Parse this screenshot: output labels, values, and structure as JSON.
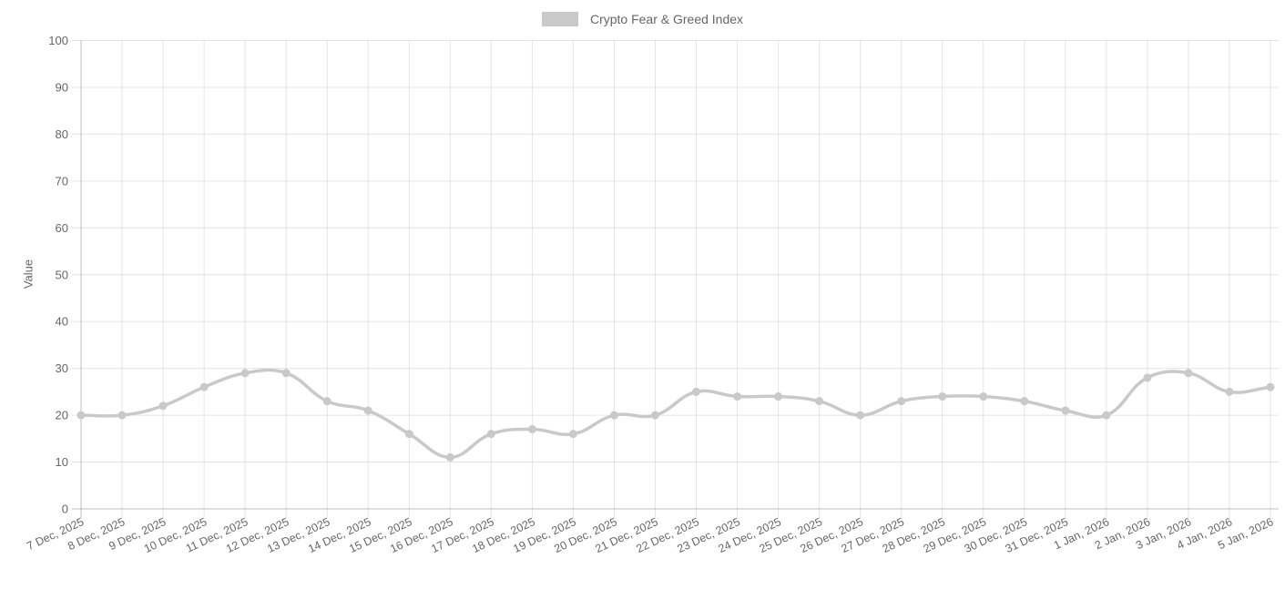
{
  "legend": {
    "label": "Crypto Fear & Greed Index",
    "swatch_color": "#c9c9c9"
  },
  "colors": {
    "background": "#ffffff",
    "series": "#c9c9c9",
    "grid": "rgba(0,0,0,0.1)",
    "axis_zero": "rgba(0,0,0,0.25)",
    "tick_label": "#666666"
  },
  "chart_data": {
    "type": "line",
    "title": "Crypto Fear & Greed Index",
    "xlabel": "",
    "ylabel": "Value",
    "ylim": [
      0,
      100
    ],
    "yticks": [
      0,
      10,
      20,
      30,
      40,
      50,
      60,
      70,
      80,
      90,
      100
    ],
    "grid": true,
    "legend_position": "top",
    "line_tension": 0.4,
    "marker_radius": 4.5,
    "line_width": 3.5,
    "categories": [
      "7 Dec, 2025",
      "8 Dec, 2025",
      "9 Dec, 2025",
      "10 Dec, 2025",
      "11 Dec, 2025",
      "12 Dec, 2025",
      "13 Dec, 2025",
      "14 Dec, 2025",
      "15 Dec, 2025",
      "16 Dec, 2025",
      "17 Dec, 2025",
      "18 Dec, 2025",
      "19 Dec, 2025",
      "20 Dec, 2025",
      "21 Dec, 2025",
      "22 Dec, 2025",
      "23 Dec, 2025",
      "24 Dec, 2025",
      "25 Dec, 2025",
      "26 Dec, 2025",
      "27 Dec, 2025",
      "28 Dec, 2025",
      "29 Dec, 2025",
      "30 Dec, 2025",
      "31 Dec, 2025",
      "1 Jan, 2026",
      "2 Jan, 2026",
      "3 Jan, 2026",
      "4 Jan, 2026",
      "5 Jan, 2026"
    ],
    "series": [
      {
        "name": "Crypto Fear & Greed Index",
        "color": "#c9c9c9",
        "values": [
          20,
          20,
          22,
          26,
          29,
          29,
          23,
          21,
          16,
          11,
          16,
          17,
          16,
          20,
          20,
          25,
          24,
          24,
          23,
          20,
          23,
          24,
          24,
          23,
          21,
          20,
          28,
          29,
          25,
          26
        ]
      }
    ]
  }
}
